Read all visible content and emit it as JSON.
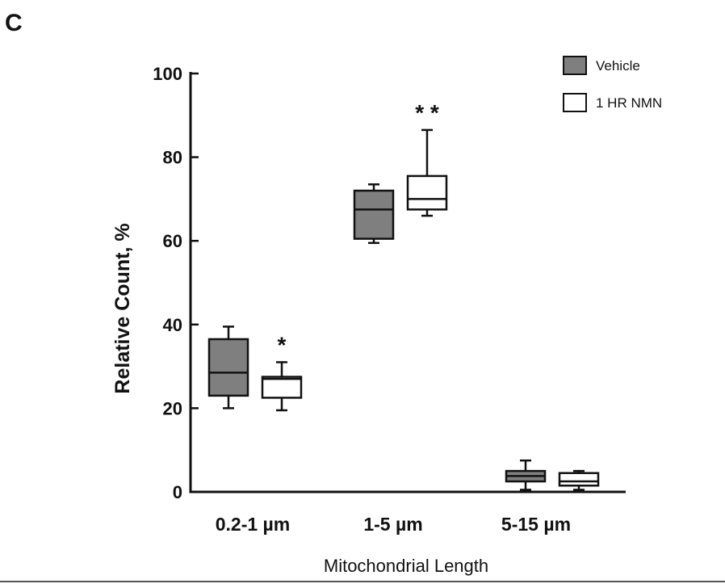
{
  "panel_label": "C",
  "chart_data": {
    "type": "box",
    "ylabel": "Relative Count, %",
    "xlabel": "Mitochondrial Length",
    "ylim": [
      0,
      100
    ],
    "yticks": [
      "0",
      "20",
      "40",
      "60",
      "80",
      "100"
    ],
    "categories": [
      "0.2-1 µm",
      "1-5 µm",
      "5-15 µm"
    ],
    "legend_position": "top-right",
    "series": [
      {
        "name": "Vehicle",
        "color": "#7f7f7f",
        "boxes": [
          {
            "min": 20,
            "q1": 23,
            "median": 28.5,
            "q3": 36.5,
            "max": 39.5
          },
          {
            "min": 59.5,
            "q1": 60.5,
            "median": 67.5,
            "q3": 72,
            "max": 73.5
          },
          {
            "min": 0.5,
            "q1": 2.5,
            "median": 3.8,
            "q3": 5,
            "max": 7.5
          }
        ]
      },
      {
        "name": "1 HR NMN",
        "color": "#ffffff",
        "boxes": [
          {
            "min": 19.5,
            "q1": 22.5,
            "median": 27,
            "q3": 27.5,
            "max": 31
          },
          {
            "min": 66,
            "q1": 67.5,
            "median": 70,
            "q3": 75.5,
            "max": 86.5
          },
          {
            "min": 0.5,
            "q1": 1.5,
            "median": 2.5,
            "q3": 4.5,
            "max": 5
          }
        ]
      }
    ],
    "annotations": [
      {
        "category": 0,
        "series": 1,
        "text": "*"
      },
      {
        "category": 1,
        "series": 1,
        "text": "* *"
      }
    ]
  }
}
